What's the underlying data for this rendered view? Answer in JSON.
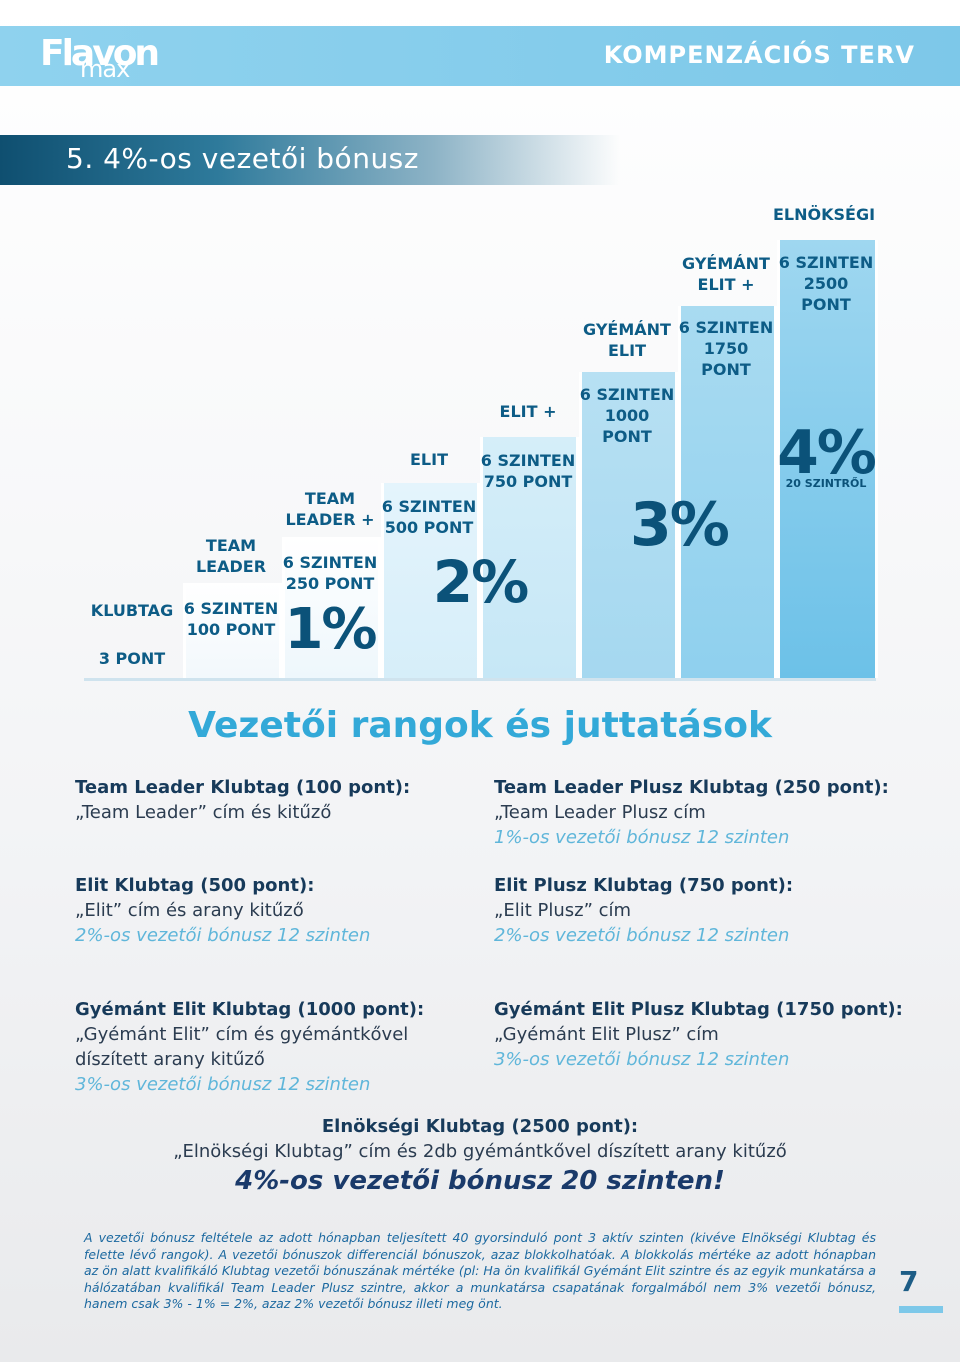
{
  "header": {
    "logo_main": "Flavon",
    "logo_sub": "max",
    "title": "KOMPENZÁCIÓS TERV"
  },
  "section": {
    "title": "5.  4%-os vezetői bónusz"
  },
  "ranks": [
    {
      "name": "KLUBTAG",
      "req": "3 PONT"
    },
    {
      "name": "TEAM\nLEADER",
      "req": "6 SZINTEN\n100 PONT"
    },
    {
      "name": "TEAM\nLEADER +",
      "req": "6 SZINTEN\n250 PONT"
    },
    {
      "name": "ELIT",
      "req": "6 SZINTEN\n500 PONT"
    },
    {
      "name": "ELIT +",
      "req": "6 SZINTEN\n750 PONT"
    },
    {
      "name": "GYÉMÁNT\nELIT",
      "req": "6 SZINTEN\n1000 PONT"
    },
    {
      "name": "GYÉMÁNT\nELIT +",
      "req": "6 SZINTEN\n1750 PONT"
    },
    {
      "name": "ELNÖKSÉGI",
      "req": "6 SZINTEN\n2500 PONT"
    }
  ],
  "percents": {
    "p1": "1%",
    "p2": "2%",
    "p3": "3%",
    "p4": "4%",
    "p4_sub": "20 SZINTRŐL"
  },
  "colors": {
    "accent": "#33a9d8",
    "dark": "#0d5c86"
  },
  "main_title": "Vezetői rangok és juttatások",
  "blocks": {
    "b1": {
      "h": "Team Leader Klubtag (100 pont):",
      "l1": "„Team Leader” cím és kitűző"
    },
    "b2": {
      "h": "Team Leader Plusz Klubtag (250 pont):",
      "l1": "„Team Leader Plusz cím",
      "i": "1%-os vezetői bónusz 12 szinten"
    },
    "b3": {
      "h": "Elit Klubtag (500 pont):",
      "l1": "„Elit” cím és arany kitűző",
      "i": "2%-os vezetői bónusz 12 szinten"
    },
    "b4": {
      "h": "Elit Plusz Klubtag (750 pont):",
      "l1": "„Elit Plusz” cím",
      "i": "2%-os vezetői bónusz 12 szinten"
    },
    "b5": {
      "h": "Gyémánt Elit Klubtag (1000 pont):",
      "l1": "„Gyémánt Elit” cím és gyémántkővel",
      "l2": "díszített arany kitűző",
      "i": "3%-os vezetői bónusz 12 szinten"
    },
    "b6": {
      "h": "Gyémánt Elit Plusz Klubtag (1750 pont):",
      "l1": "„Gyémánt Elit Plusz” cím",
      "i": "3%-os vezetői bónusz 12 szinten"
    },
    "b7": {
      "h": "Elnökségi Klubtag (2500 pont):",
      "l1": "„Elnökségi Klubtag” cím és 2db gyémántkővel díszített arany kitűző"
    }
  },
  "final_line": "4%-os vezetői bónusz 20 szinten!",
  "footnote": "A vezetői bónusz feltétele az adott hónapban teljesített 40 gyorsinduló pont 3 aktív szinten (kivéve Elnökségi Klubtag és felette lévő rangok). A vezetői bónuszok differenciál bónuszok, azaz blokkolhatóak. A blokkolás mértéke az adott hónapban az ön alatt kvalifikáló Klubtag vezetői bónuszának mértéke (pl: Ha ön kvalifikál Gyémánt Elit szintre és az egyik munkatársa a hálózatában kvalifikál Team Leader Plusz szintre, akkor a munkatársa csapatának forgalmából nem 3% vezetői bónusz, hanem csak 3% - 1% = 2%, azaz 2% vezetői bónusz illeti meg önt.",
  "page_number": "7"
}
